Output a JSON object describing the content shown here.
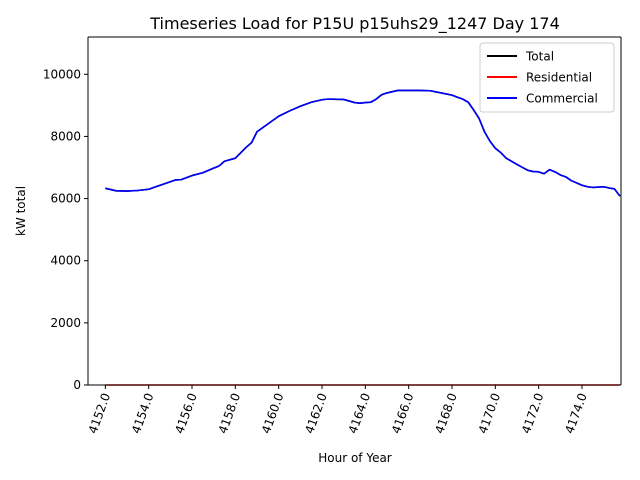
{
  "chart_data": {
    "type": "line",
    "title": "Timeseries Load for P15U p15uhs29_1247  Day 174",
    "xlabel": "Hour of Year",
    "ylabel": "kW total",
    "xlim": [
      4151.2,
      4175.8
    ],
    "ylim": [
      0,
      11200
    ],
    "xticks": [
      4152,
      4154,
      4156,
      4158,
      4160,
      4162,
      4164,
      4166,
      4168,
      4170,
      4172,
      4174
    ],
    "xtick_labels": [
      "4152.0",
      "4154.0",
      "4156.0",
      "4158.0",
      "4160.0",
      "4162.0",
      "4164.0",
      "4166.0",
      "4168.0",
      "4170.0",
      "4172.0",
      "4174.0"
    ],
    "yticks": [
      0,
      2000,
      4000,
      6000,
      8000,
      10000
    ],
    "ytick_labels": [
      "0",
      "2000",
      "4000",
      "6000",
      "8000",
      "10000"
    ],
    "legend_position": "top-right",
    "series": [
      {
        "name": "Total",
        "color": "#000000",
        "x": [
          4152.0,
          4152.5,
          4153.0,
          4153.5,
          4154.0,
          4154.5,
          4155.0,
          4155.25,
          4155.5,
          4156.0,
          4156.5,
          4157.0,
          4157.25,
          4157.5,
          4158.0,
          4158.5,
          4158.75,
          4159.0,
          4159.5,
          4160.0,
          4160.5,
          4161.0,
          4161.5,
          4162.0,
          4162.25,
          4162.5,
          4163.0,
          4163.5,
          4163.75,
          4164.0,
          4164.25,
          4164.5,
          4164.75,
          4165.0,
          4165.5,
          4166.0,
          4166.5,
          4167.0,
          4167.5,
          4168.0,
          4168.25,
          4168.5,
          4168.75,
          4169.0,
          4169.25,
          4169.5,
          4169.75,
          4170.0,
          4170.25,
          4170.5,
          4171.0,
          4171.5,
          4171.75,
          4172.0,
          4172.25,
          4172.5,
          4172.75,
          4173.0,
          4173.25,
          4173.5,
          4174.0,
          4174.25,
          4174.5,
          4175.0,
          4175.25,
          4175.5,
          4175.75
        ],
        "values": [
          6330,
          6250,
          6240,
          6260,
          6300,
          6420,
          6540,
          6600,
          6610,
          6740,
          6830,
          6980,
          7050,
          7200,
          7300,
          7650,
          7800,
          8150,
          8400,
          8650,
          8820,
          8970,
          9100,
          9180,
          9200,
          9200,
          9190,
          9090,
          9070,
          9090,
          9100,
          9200,
          9340,
          9400,
          9480,
          9480,
          9480,
          9470,
          9400,
          9330,
          9260,
          9200,
          9100,
          8850,
          8580,
          8150,
          7850,
          7620,
          7480,
          7300,
          7100,
          6910,
          6870,
          6860,
          6800,
          6930,
          6860,
          6760,
          6700,
          6580,
          6430,
          6380,
          6360,
          6380,
          6340,
          6310,
          6080
        ]
      },
      {
        "name": "Residential",
        "color": "#ff0000",
        "x": [
          4152.0,
          4175.75
        ],
        "values": [
          0,
          0
        ]
      },
      {
        "name": "Commercial",
        "color": "#0000ff",
        "x": [
          4152.0,
          4152.5,
          4153.0,
          4153.5,
          4154.0,
          4154.5,
          4155.0,
          4155.25,
          4155.5,
          4156.0,
          4156.5,
          4157.0,
          4157.25,
          4157.5,
          4158.0,
          4158.5,
          4158.75,
          4159.0,
          4159.5,
          4160.0,
          4160.5,
          4161.0,
          4161.5,
          4162.0,
          4162.25,
          4162.5,
          4163.0,
          4163.5,
          4163.75,
          4164.0,
          4164.25,
          4164.5,
          4164.75,
          4165.0,
          4165.5,
          4166.0,
          4166.5,
          4167.0,
          4167.5,
          4168.0,
          4168.25,
          4168.5,
          4168.75,
          4169.0,
          4169.25,
          4169.5,
          4169.75,
          4170.0,
          4170.25,
          4170.5,
          4171.0,
          4171.5,
          4171.75,
          4172.0,
          4172.25,
          4172.5,
          4172.75,
          4173.0,
          4173.25,
          4173.5,
          4174.0,
          4174.25,
          4174.5,
          4175.0,
          4175.25,
          4175.5,
          4175.75
        ],
        "values": [
          6330,
          6250,
          6240,
          6260,
          6300,
          6420,
          6540,
          6600,
          6610,
          6740,
          6830,
          6980,
          7050,
          7200,
          7300,
          7650,
          7800,
          8150,
          8400,
          8650,
          8820,
          8970,
          9100,
          9180,
          9200,
          9200,
          9190,
          9090,
          9070,
          9090,
          9100,
          9200,
          9340,
          9400,
          9480,
          9480,
          9480,
          9470,
          9400,
          9330,
          9260,
          9200,
          9100,
          8850,
          8580,
          8150,
          7850,
          7620,
          7480,
          7300,
          7100,
          6910,
          6870,
          6860,
          6800,
          6930,
          6860,
          6760,
          6700,
          6580,
          6430,
          6380,
          6360,
          6380,
          6340,
          6310,
          6080
        ]
      }
    ]
  }
}
